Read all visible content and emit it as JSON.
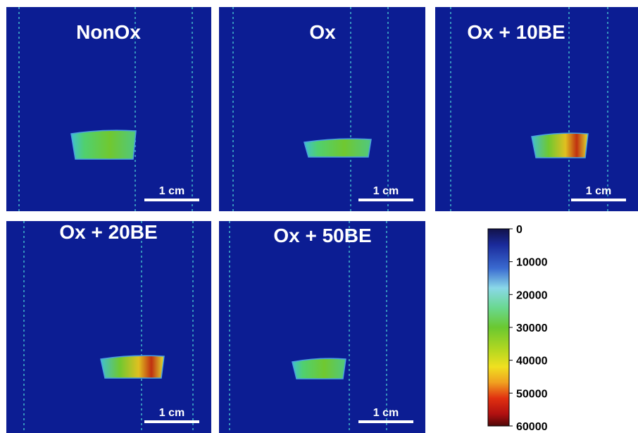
{
  "panels": [
    {
      "title": "NonOx",
      "scale_label": "1 cm"
    },
    {
      "title": "Ox",
      "scale_label": "1 cm"
    },
    {
      "title": "Ox + 10BE",
      "scale_label": "1 cm"
    },
    {
      "title": "Ox + 20BE",
      "scale_label": "1 cm"
    },
    {
      "title": "Ox + 50BE",
      "scale_label": "1 cm"
    }
  ],
  "colorbar": {
    "lim": [
      0,
      60000
    ],
    "ticks": [
      0,
      10000,
      20000,
      30000,
      40000,
      50000,
      60000
    ]
  }
}
